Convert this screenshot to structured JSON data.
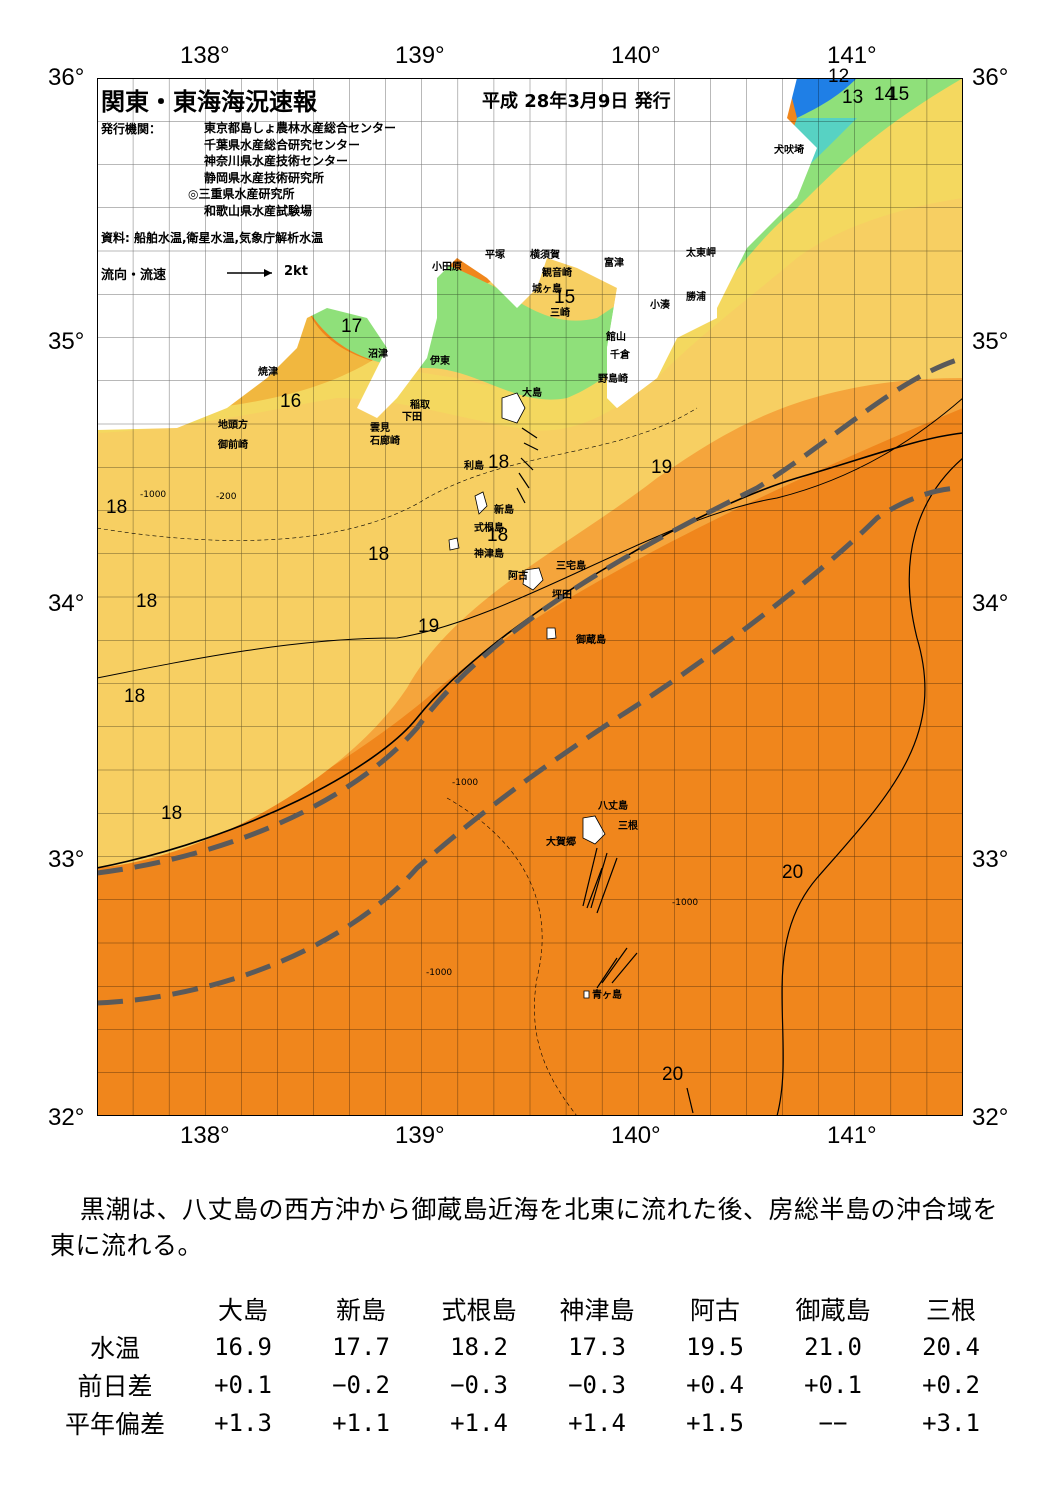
{
  "header": {
    "title": "関東・東海海況速報",
    "date": "平成 28年3月9日 発行",
    "issuers_label": "発行機関：",
    "issuers": [
      "東京都島しょ農林水産総合センター",
      "千葉県水産総合研究センター",
      "神奈川県水産技術センター",
      "静岡県水産技術研究所",
      "◎三重県水産研究所",
      "和歌山県水産試験場"
    ],
    "source": "資料: 船舶水温,衛星水温,気象庁解析水温",
    "flow_label": "流向・流速",
    "flow_scale": "2kt"
  },
  "axes": {
    "lon_ticks": [
      "138°",
      "139°",
      "140°",
      "141°"
    ],
    "lat_ticks": [
      "36°",
      "35°",
      "34°",
      "33°",
      "32°"
    ]
  },
  "places": {
    "odawara": "小田原",
    "hiratsuka": "平塚",
    "yokosuka": "横須賀",
    "kannonzaki": "観音崎",
    "futtsu": "富津",
    "jogashima": "城ヶ島",
    "misaki": "三崎",
    "tateyama": "館山",
    "chikura": "千倉",
    "nojimazaki": "野島崎",
    "kominato": "小湊",
    "katsuura": "勝浦",
    "taitomisaki": "太東岬",
    "inubosaki": "犬吠埼",
    "yaizu": "焼津",
    "numazu": "沼津",
    "ito": "伊東",
    "inatori": "稲取",
    "shimoda": "下田",
    "kumomi": "雲見",
    "irozaki": "石廊崎",
    "jitogata": "地頭方",
    "omaezaki": "御前崎",
    "oshima": "大島",
    "toshima": "利島",
    "niijima": "新島",
    "shikinejima": "式根島",
    "kozushima": "神津島",
    "miyakejima": "三宅島",
    "ako": "阿古",
    "tsubota": "坪田",
    "mikurajima": "御蔵島",
    "hachijojima": "八丈島",
    "mitsune": "三根",
    "okago": "大賀郷",
    "aogashima": "青ヶ島"
  },
  "isotherm_labels": [
    "12",
    "13",
    "14",
    "15",
    "15",
    "16",
    "17",
    "18",
    "18",
    "18",
    "18",
    "18",
    "18",
    "18",
    "19",
    "19",
    "20",
    "20"
  ],
  "depth_labels": [
    "-200",
    "-1000"
  ],
  "summary": "黒潮は、八丈島の西方沖から御蔵島近海を北東に流れた後、房総半島の沖合域を東に流れる。",
  "table": {
    "columns": [
      "大島",
      "新島",
      "式根島",
      "神津島",
      "阿古",
      "御蔵島",
      "三根"
    ],
    "rows": [
      {
        "label": "水温",
        "values": [
          "16.9",
          "17.7",
          "18.2",
          "17.3",
          "19.5",
          "21.0",
          "20.4"
        ]
      },
      {
        "label": "前日差",
        "values": [
          "+0.1",
          "−0.2",
          "−0.3",
          "−0.3",
          "+0.4",
          "+0.1",
          "+0.2"
        ]
      },
      {
        "label": "平年偏差",
        "values": [
          "+1.3",
          "+1.1",
          "+1.4",
          "+1.4",
          "+1.5",
          "−−",
          "+3.1"
        ]
      }
    ]
  },
  "colors": {
    "cold": "#1f7fe6",
    "cool": "#8fe07a",
    "mild": "#f7cf62",
    "warm": "#f5a53c",
    "hot": "#f0861c",
    "land": "#ffffff",
    "kuroshio_axis": "#5a5a5a"
  }
}
